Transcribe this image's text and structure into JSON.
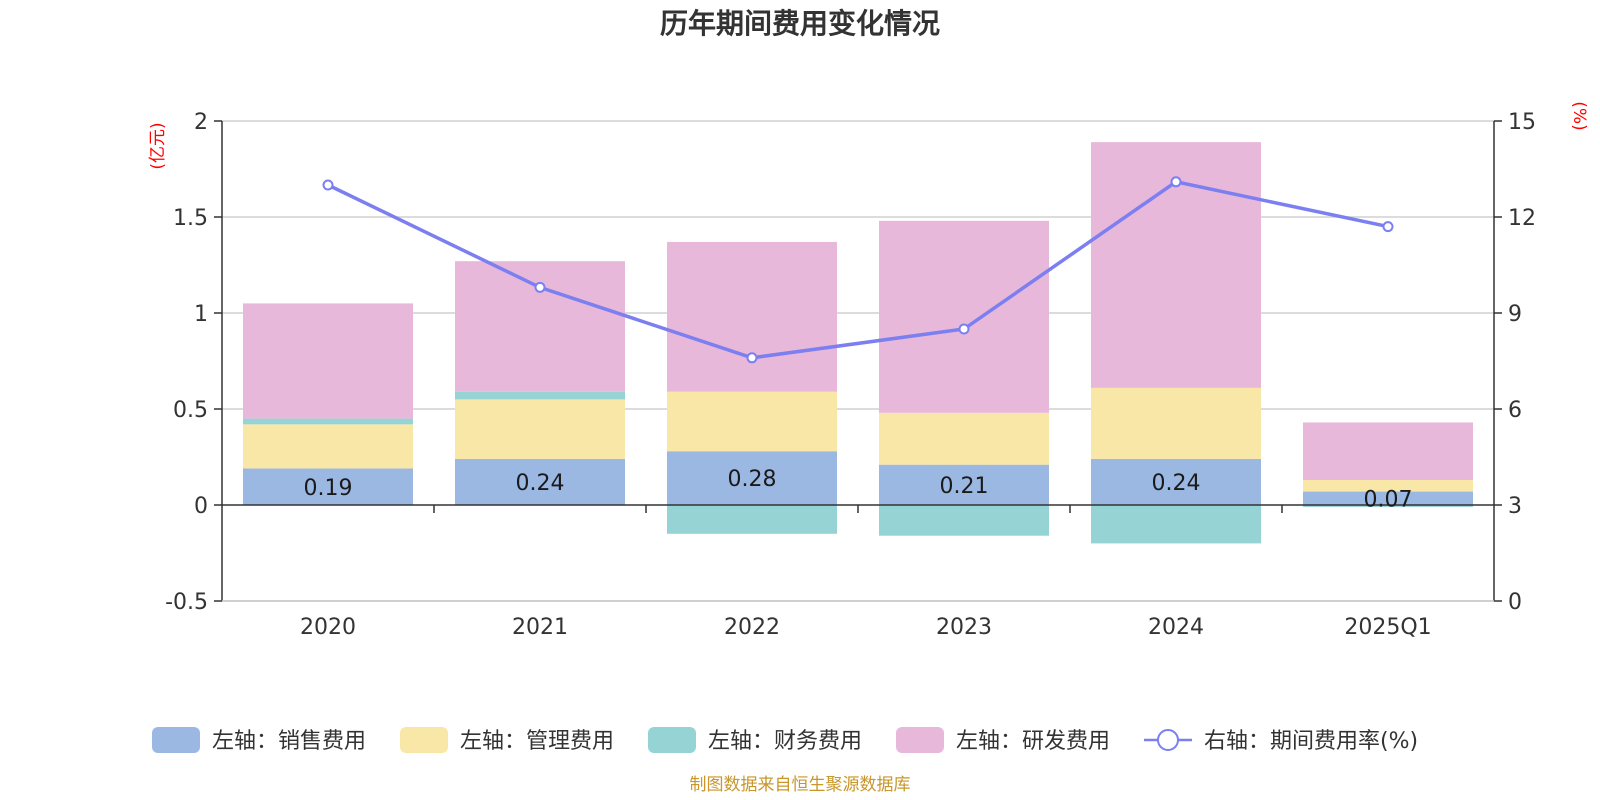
{
  "chart_data": {
    "type": "bar",
    "title": "历年期间费用变化情况",
    "categories": [
      "2020",
      "2021",
      "2022",
      "2023",
      "2024",
      "2025Q1"
    ],
    "left_axis": {
      "unit": "(亿元)",
      "ylim": [
        -0.5,
        2
      ],
      "ticks": [
        "2",
        "1.5",
        "1",
        "0.5",
        "0",
        "-0.5"
      ],
      "tick_values": [
        2,
        1.5,
        1,
        0.5,
        0,
        -0.5
      ]
    },
    "right_axis": {
      "unit": "(%)",
      "ylim": [
        0,
        15
      ],
      "ticks": [
        "15",
        "12",
        "9",
        "6",
        "3",
        "0"
      ],
      "tick_values": [
        15,
        12,
        9,
        6,
        3,
        0
      ]
    },
    "series": [
      {
        "name": "左轴：销售费用",
        "axis": "left",
        "type": "bar",
        "color": "#9bb8e3",
        "values": [
          0.19,
          0.24,
          0.28,
          0.21,
          0.24,
          0.07
        ],
        "labels": [
          "0.19",
          "0.24",
          "0.28",
          "0.21",
          "0.24",
          "0.07"
        ]
      },
      {
        "name": "左轴：管理费用",
        "axis": "left",
        "type": "bar",
        "color": "#f8e7a6",
        "values": [
          0.23,
          0.31,
          0.31,
          0.27,
          0.37,
          0.06
        ]
      },
      {
        "name": "左轴：财务费用",
        "axis": "left",
        "type": "bar",
        "color": "#96d3d4",
        "values": [
          0.03,
          0.04,
          -0.15,
          -0.16,
          -0.2,
          -0.01
        ]
      },
      {
        "name": "左轴：研发费用",
        "axis": "left",
        "type": "bar",
        "color": "#e8b8da",
        "values": [
          0.6,
          0.68,
          0.78,
          1.0,
          1.28,
          0.3
        ]
      },
      {
        "name": "右轴：期间费用率(%)",
        "axis": "right",
        "type": "line",
        "color": "#7b7ff0",
        "values": [
          13.0,
          9.8,
          7.6,
          8.5,
          13.1,
          11.7
        ]
      }
    ],
    "grid": true,
    "legend_position": "bottom",
    "source": "制图数据来自恒生聚源数据库"
  }
}
